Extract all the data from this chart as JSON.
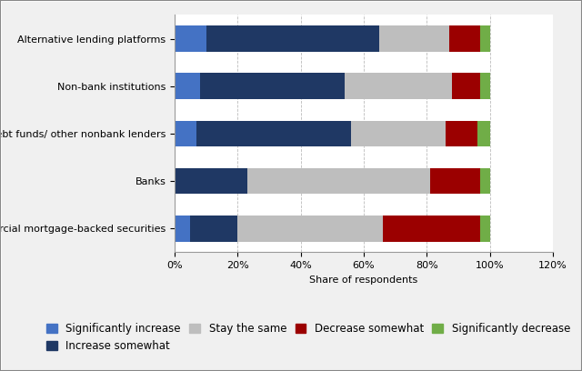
{
  "categories": [
    "Alternative lending platforms",
    "Non-bank institutions",
    "Debt funds/ other nonbank lenders",
    "Banks",
    "Commercial mortgage-backed securities"
  ],
  "series": {
    "Significantly increase": [
      10,
      8,
      7,
      0,
      5
    ],
    "Increase somewhat": [
      55,
      46,
      49,
      23,
      15
    ],
    "Stay the same": [
      22,
      34,
      30,
      58,
      46
    ],
    "Decrease somewhat": [
      10,
      9,
      10,
      16,
      31
    ],
    "Significantly decrease": [
      3,
      3,
      4,
      3,
      3
    ]
  },
  "colors": {
    "Significantly increase": "#4472C4",
    "Increase somewhat": "#1F3864",
    "Stay the same": "#BEBEBE",
    "Decrease somewhat": "#9B0000",
    "Significantly decrease": "#70AD47"
  },
  "xlabel": "Share of respondents",
  "xlim": [
    0,
    120
  ],
  "xticks": [
    0,
    20,
    40,
    60,
    80,
    100,
    120
  ],
  "xtick_labels": [
    "0%",
    "20%",
    "40%",
    "60%",
    "80%",
    "100%",
    "120%"
  ],
  "fig_bg": "#F0F0F0",
  "plot_bg": "#FFFFFF",
  "bar_height": 0.55,
  "tick_fontsize": 8,
  "legend_fontsize": 8.5,
  "label_fontsize": 8
}
